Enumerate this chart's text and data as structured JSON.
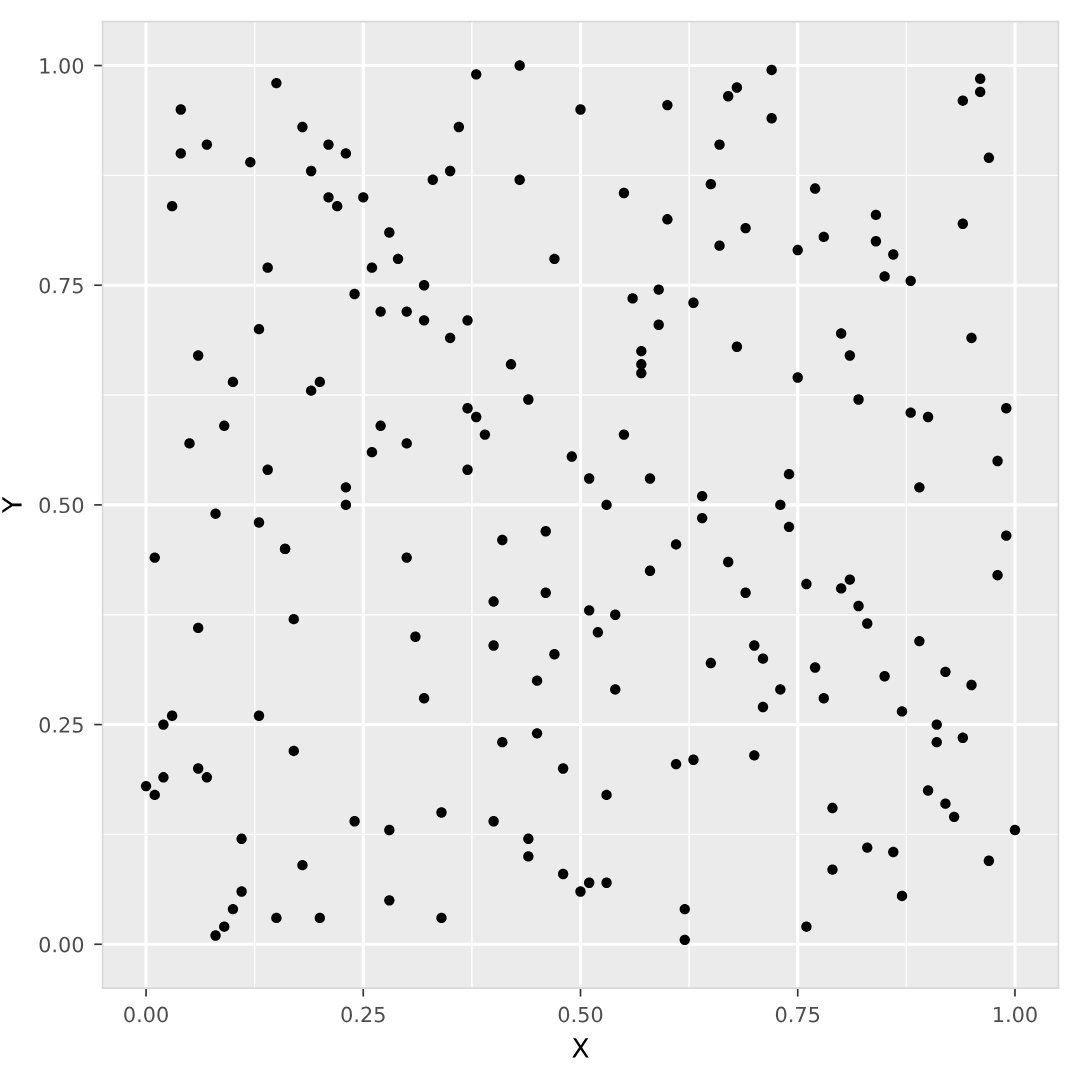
{
  "chart_data": {
    "type": "scatter",
    "xlabel": "X",
    "ylabel": "Y",
    "xlim": [
      -0.05,
      1.05
    ],
    "ylim": [
      -0.05,
      1.05
    ],
    "xticks": [
      {
        "value": 0,
        "label": "0.00"
      },
      {
        "value": 0.25,
        "label": "0.25"
      },
      {
        "value": 0.5,
        "label": "0.50"
      },
      {
        "value": 0.75,
        "label": "0.75"
      },
      {
        "value": 1,
        "label": "1.00"
      }
    ],
    "yticks": [
      {
        "value": 0,
        "label": "0.00"
      },
      {
        "value": 0.25,
        "label": "0.25"
      },
      {
        "value": 0.5,
        "label": "0.50"
      },
      {
        "value": 0.75,
        "label": "0.75"
      },
      {
        "value": 1,
        "label": "1.00"
      }
    ],
    "grid": true,
    "marker": "circle",
    "series": [
      {
        "color": "#000000",
        "x": [
          0.0,
          0.01,
          0.01,
          0.02,
          0.02,
          0.03,
          0.04,
          0.04,
          0.03,
          0.05,
          0.06,
          0.06,
          0.06,
          0.07,
          0.07,
          0.08,
          0.08,
          0.09,
          0.09,
          0.1,
          0.1,
          0.11,
          0.11,
          0.12,
          0.13,
          0.13,
          0.13,
          0.14,
          0.14,
          0.15,
          0.15,
          0.16,
          0.16,
          0.17,
          0.17,
          0.18,
          0.18,
          0.19,
          0.19,
          0.2,
          0.2,
          0.21,
          0.21,
          0.22,
          0.23,
          0.23,
          0.23,
          0.24,
          0.24,
          0.25,
          0.26,
          0.26,
          0.27,
          0.27,
          0.28,
          0.28,
          0.28,
          0.29,
          0.3,
          0.3,
          0.3,
          0.32,
          0.31,
          0.32,
          0.32,
          0.33,
          0.34,
          0.34,
          0.35,
          0.35,
          0.36,
          0.37,
          0.37,
          0.37,
          0.38,
          0.38,
          0.39,
          0.4,
          0.4,
          0.4,
          0.41,
          0.41,
          0.42,
          0.43,
          0.43,
          0.44,
          0.44,
          0.44,
          0.45,
          0.45,
          0.46,
          0.46,
          0.47,
          0.47,
          0.48,
          0.48,
          0.49,
          0.5,
          0.5,
          0.51,
          0.51,
          0.51,
          0.52,
          0.53,
          0.53,
          0.53,
          0.54,
          0.54,
          0.55,
          0.55,
          0.56,
          0.57,
          0.57,
          0.57,
          0.58,
          0.58,
          0.59,
          0.59,
          0.6,
          0.6,
          0.61,
          0.61,
          0.62,
          0.62,
          0.63,
          0.63,
          0.64,
          0.64,
          0.65,
          0.65,
          0.66,
          0.66,
          0.67,
          0.67,
          0.68,
          0.68,
          0.69,
          0.69,
          0.7,
          0.7,
          0.71,
          0.71,
          0.72,
          0.72,
          0.73,
          0.73,
          0.74,
          0.74,
          0.75,
          0.75,
          0.76,
          0.76,
          0.77,
          0.77,
          0.78,
          0.78,
          0.79,
          0.79,
          0.8,
          0.8,
          0.81,
          0.81,
          0.82,
          0.82,
          0.83,
          0.83,
          0.84,
          0.84,
          0.85,
          0.85,
          0.86,
          0.86,
          0.87,
          0.87,
          0.88,
          0.88,
          0.89,
          0.89,
          0.9,
          0.9,
          0.91,
          0.91,
          0.92,
          0.92,
          0.93,
          0.94,
          0.94,
          0.94,
          0.95,
          0.95,
          0.96,
          0.96,
          0.97,
          0.97,
          0.98,
          0.98,
          0.99,
          0.99,
          1.0
        ],
        "values": [
          0.18,
          0.17,
          0.44,
          0.25,
          0.19,
          0.26,
          0.9,
          0.95,
          0.84,
          0.57,
          0.2,
          0.36,
          0.67,
          0.91,
          0.19,
          0.01,
          0.49,
          0.02,
          0.59,
          0.04,
          0.64,
          0.06,
          0.12,
          0.89,
          0.7,
          0.26,
          0.48,
          0.54,
          0.77,
          0.03,
          0.98,
          0.45,
          0.45,
          0.22,
          0.37,
          0.93,
          0.09,
          0.88,
          0.63,
          0.64,
          0.03,
          0.91,
          0.85,
          0.84,
          0.52,
          0.5,
          0.9,
          0.14,
          0.74,
          0.85,
          0.77,
          0.56,
          0.72,
          0.59,
          0.13,
          0.81,
          0.05,
          0.78,
          0.44,
          0.57,
          0.72,
          0.71,
          0.35,
          0.28,
          0.75,
          0.87,
          0.15,
          0.03,
          0.88,
          0.69,
          0.93,
          0.71,
          0.61,
          0.54,
          0.6,
          0.99,
          0.58,
          0.39,
          0.34,
          0.14,
          0.23,
          0.46,
          0.66,
          0.87,
          1.0,
          0.62,
          0.12,
          0.1,
          0.24,
          0.3,
          0.47,
          0.4,
          0.33,
          0.78,
          0.2,
          0.08,
          0.555,
          0.95,
          0.06,
          0.07,
          0.53,
          0.38,
          0.355,
          0.07,
          0.5,
          0.17,
          0.375,
          0.29,
          0.58,
          0.855,
          0.735,
          0.675,
          0.65,
          0.66,
          0.53,
          0.425,
          0.745,
          0.705,
          0.955,
          0.825,
          0.205,
          0.455,
          0.04,
          0.005,
          0.73,
          0.21,
          0.485,
          0.51,
          0.865,
          0.32,
          0.795,
          0.91,
          0.435,
          0.965,
          0.975,
          0.68,
          0.815,
          0.4,
          0.34,
          0.215,
          0.27,
          0.325,
          0.995,
          0.94,
          0.29,
          0.5,
          0.535,
          0.475,
          0.645,
          0.79,
          0.41,
          0.02,
          0.315,
          0.86,
          0.28,
          0.805,
          0.085,
          0.155,
          0.695,
          0.405,
          0.67,
          0.415,
          0.62,
          0.385,
          0.365,
          0.11,
          0.83,
          0.8,
          0.305,
          0.76,
          0.785,
          0.105,
          0.265,
          0.055,
          0.755,
          0.605,
          0.52,
          0.345,
          0.175,
          0.6,
          0.23,
          0.25,
          0.31,
          0.16,
          0.145,
          0.235,
          0.96,
          0.82,
          0.69,
          0.295,
          0.985,
          0.97,
          0.895,
          0.095,
          0.42,
          0.55,
          0.465,
          0.61,
          0.13
        ]
      }
    ]
  }
}
